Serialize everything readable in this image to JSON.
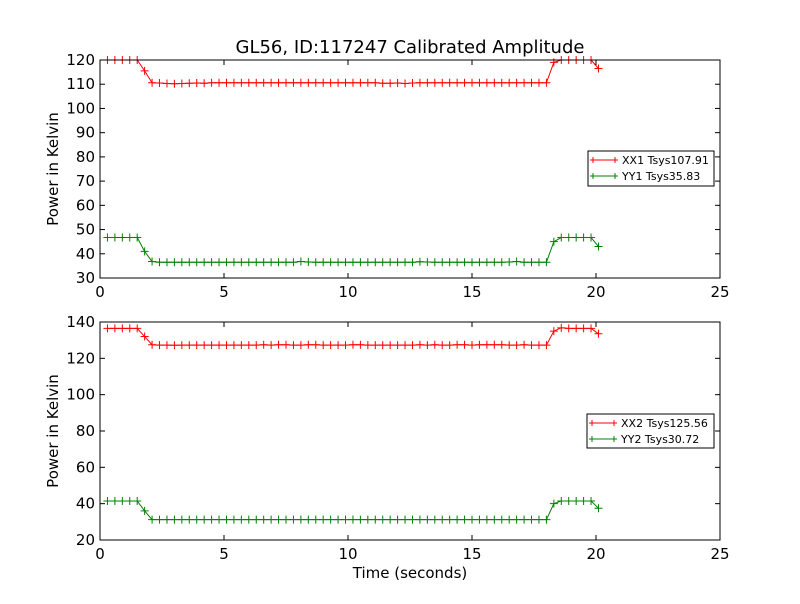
{
  "chart_data": [
    {
      "type": "line",
      "title": "GL56, ID:117247 Calibrated Amplitude",
      "xlabel": "",
      "ylabel": "Power in Kelvin",
      "xlim": [
        0,
        25
      ],
      "ylim": [
        30,
        120
      ],
      "xticks": [
        0,
        5,
        10,
        15,
        20,
        25
      ],
      "yticks": [
        30,
        40,
        50,
        60,
        70,
        80,
        90,
        100,
        110,
        120
      ],
      "legend_position": "center-right",
      "grid": false,
      "series": [
        {
          "name": "XX1 Tsys107.91",
          "color": "#ff0000",
          "x": [
            0.3,
            0.6,
            0.9,
            1.2,
            1.5,
            1.8,
            2.1,
            2.4,
            2.7,
            3.0,
            3.3,
            3.6,
            3.9,
            4.2,
            4.5,
            4.8,
            5.1,
            5.4,
            5.7,
            6.0,
            6.3,
            6.6,
            6.9,
            7.2,
            7.5,
            7.8,
            8.1,
            8.4,
            8.7,
            9.0,
            9.3,
            9.6,
            9.9,
            10.2,
            10.5,
            10.8,
            11.1,
            11.4,
            11.7,
            12.0,
            12.3,
            12.6,
            12.9,
            13.2,
            13.5,
            13.8,
            14.1,
            14.4,
            14.7,
            15.0,
            15.3,
            15.6,
            15.9,
            16.2,
            16.5,
            16.8,
            17.1,
            17.4,
            17.7,
            18.0,
            18.3,
            18.6,
            18.9,
            19.2,
            19.5,
            19.8,
            20.1
          ],
          "y": [
            120,
            120,
            120,
            120,
            120,
            115.5,
            110.6,
            110.5,
            110.3,
            110.2,
            110.3,
            110.4,
            110.5,
            110.4,
            110.6,
            110.6,
            110.6,
            110.6,
            110.6,
            110.6,
            110.6,
            110.6,
            110.6,
            110.6,
            110.6,
            110.6,
            110.6,
            110.6,
            110.6,
            110.6,
            110.6,
            110.6,
            110.6,
            110.6,
            110.6,
            110.6,
            110.6,
            110.4,
            110.4,
            110.5,
            110.3,
            110.5,
            110.6,
            110.6,
            110.6,
            110.6,
            110.6,
            110.6,
            110.6,
            110.6,
            110.6,
            110.6,
            110.6,
            110.6,
            110.6,
            110.6,
            110.6,
            110.6,
            110.6,
            110.6,
            119,
            120,
            120,
            120,
            120,
            120,
            116.5
          ]
        },
        {
          "name": "YY1 Tsys35.83",
          "color": "#008000",
          "x": [
            0.3,
            0.6,
            0.9,
            1.2,
            1.5,
            1.8,
            2.1,
            2.4,
            2.7,
            3.0,
            3.3,
            3.6,
            3.9,
            4.2,
            4.5,
            4.8,
            5.1,
            5.4,
            5.7,
            6.0,
            6.3,
            6.6,
            6.9,
            7.2,
            7.5,
            7.8,
            8.1,
            8.4,
            8.7,
            9.0,
            9.3,
            9.6,
            9.9,
            10.2,
            10.5,
            10.8,
            11.1,
            11.4,
            11.7,
            12.0,
            12.3,
            12.6,
            12.9,
            13.2,
            13.5,
            13.8,
            14.1,
            14.4,
            14.7,
            15.0,
            15.3,
            15.6,
            15.9,
            16.2,
            16.5,
            16.8,
            17.1,
            17.4,
            17.7,
            18.0,
            18.3,
            18.6,
            18.9,
            19.2,
            19.5,
            19.8,
            20.1
          ],
          "y": [
            46.7,
            46.7,
            46.7,
            46.7,
            46.7,
            41,
            36.8,
            36.5,
            36.5,
            36.5,
            36.5,
            36.5,
            36.5,
            36.5,
            36.5,
            36.5,
            36.5,
            36.5,
            36.5,
            36.5,
            36.5,
            36.5,
            36.5,
            36.5,
            36.5,
            36.5,
            36.8,
            36.6,
            36.5,
            36.5,
            36.5,
            36.5,
            36.5,
            36.5,
            36.5,
            36.5,
            36.5,
            36.5,
            36.5,
            36.5,
            36.5,
            36.5,
            36.7,
            36.6,
            36.5,
            36.5,
            36.5,
            36.5,
            36.5,
            36.5,
            36.5,
            36.5,
            36.5,
            36.5,
            36.6,
            36.8,
            36.5,
            36.5,
            36.5,
            36.5,
            45,
            46.7,
            46.7,
            46.7,
            46.7,
            46.7,
            43
          ]
        }
      ]
    },
    {
      "type": "line",
      "title": "",
      "xlabel": "Time (seconds)",
      "ylabel": "Power in Kelvin",
      "xlim": [
        0,
        25
      ],
      "ylim": [
        20,
        140
      ],
      "xticks": [
        0,
        5,
        10,
        15,
        20,
        25
      ],
      "yticks": [
        20,
        40,
        60,
        80,
        100,
        120,
        140
      ],
      "legend_position": "center-right",
      "grid": false,
      "series": [
        {
          "name": "XX2 Tsys125.56",
          "color": "#ff0000",
          "x": [
            0.3,
            0.6,
            0.9,
            1.2,
            1.5,
            1.8,
            2.1,
            2.4,
            2.7,
            3.0,
            3.3,
            3.6,
            3.9,
            4.2,
            4.5,
            4.8,
            5.1,
            5.4,
            5.7,
            6.0,
            6.3,
            6.6,
            6.9,
            7.2,
            7.5,
            7.8,
            8.1,
            8.4,
            8.7,
            9.0,
            9.3,
            9.6,
            9.9,
            10.2,
            10.5,
            10.8,
            11.1,
            11.4,
            11.7,
            12.0,
            12.3,
            12.6,
            12.9,
            13.2,
            13.5,
            13.8,
            14.1,
            14.4,
            14.7,
            15.0,
            15.3,
            15.6,
            15.9,
            16.2,
            16.5,
            16.8,
            17.1,
            17.4,
            17.7,
            18.0,
            18.3,
            18.6,
            18.9,
            19.2,
            19.5,
            19.8,
            20.1
          ],
          "y": [
            136.5,
            136.5,
            136.5,
            136.5,
            136.5,
            132,
            127.5,
            127.3,
            127.3,
            127.2,
            127.3,
            127.3,
            127.3,
            127.3,
            127.3,
            127.3,
            127.3,
            127.3,
            127.3,
            127.3,
            127.3,
            127.5,
            127.3,
            127.5,
            127.5,
            127.3,
            127.3,
            127.5,
            127.5,
            127.3,
            127.3,
            127.3,
            127.3,
            127.5,
            127.5,
            127.3,
            127.3,
            127.3,
            127.3,
            127.3,
            127.3,
            127.3,
            127.5,
            127.3,
            127.5,
            127.3,
            127.3,
            127.5,
            127.5,
            127.3,
            127.5,
            127.5,
            127.5,
            127.5,
            127.3,
            127.3,
            127.5,
            127.3,
            127.3,
            127.3,
            135,
            136.8,
            136.5,
            136.5,
            136.5,
            136.5,
            133.5
          ]
        },
        {
          "name": "YY2 Tsys30.72",
          "color": "#008000",
          "x": [
            0.3,
            0.6,
            0.9,
            1.2,
            1.5,
            1.8,
            2.1,
            2.4,
            2.7,
            3.0,
            3.3,
            3.6,
            3.9,
            4.2,
            4.5,
            4.8,
            5.1,
            5.4,
            5.7,
            6.0,
            6.3,
            6.6,
            6.9,
            7.2,
            7.5,
            7.8,
            8.1,
            8.4,
            8.7,
            9.0,
            9.3,
            9.6,
            9.9,
            10.2,
            10.5,
            10.8,
            11.1,
            11.4,
            11.7,
            12.0,
            12.3,
            12.6,
            12.9,
            13.2,
            13.5,
            13.8,
            14.1,
            14.4,
            14.7,
            15.0,
            15.3,
            15.6,
            15.9,
            16.2,
            16.5,
            16.8,
            17.1,
            17.4,
            17.7,
            18.0,
            18.3,
            18.6,
            18.9,
            19.2,
            19.5,
            19.8,
            20.1
          ],
          "y": [
            41.5,
            41.5,
            41.5,
            41.5,
            41.5,
            36,
            31.2,
            31.2,
            31.2,
            31.2,
            31.2,
            31.2,
            31.2,
            31.2,
            31.2,
            31.2,
            31.2,
            31.2,
            31.2,
            31.2,
            31.2,
            31.2,
            31.2,
            31.2,
            31.2,
            31.2,
            31.2,
            31.2,
            31.2,
            31.2,
            31.2,
            31.2,
            31.2,
            31.2,
            31.2,
            31.2,
            31.2,
            31.2,
            31.2,
            31.2,
            31.2,
            31.2,
            31.2,
            31.2,
            31.2,
            31.2,
            31.2,
            31.2,
            31.2,
            31.2,
            31.2,
            31.2,
            31.2,
            31.2,
            31.2,
            31.2,
            31.2,
            31.2,
            31.2,
            31.2,
            40,
            41.5,
            41.5,
            41.5,
            41.5,
            41.5,
            37.5
          ]
        }
      ]
    }
  ]
}
